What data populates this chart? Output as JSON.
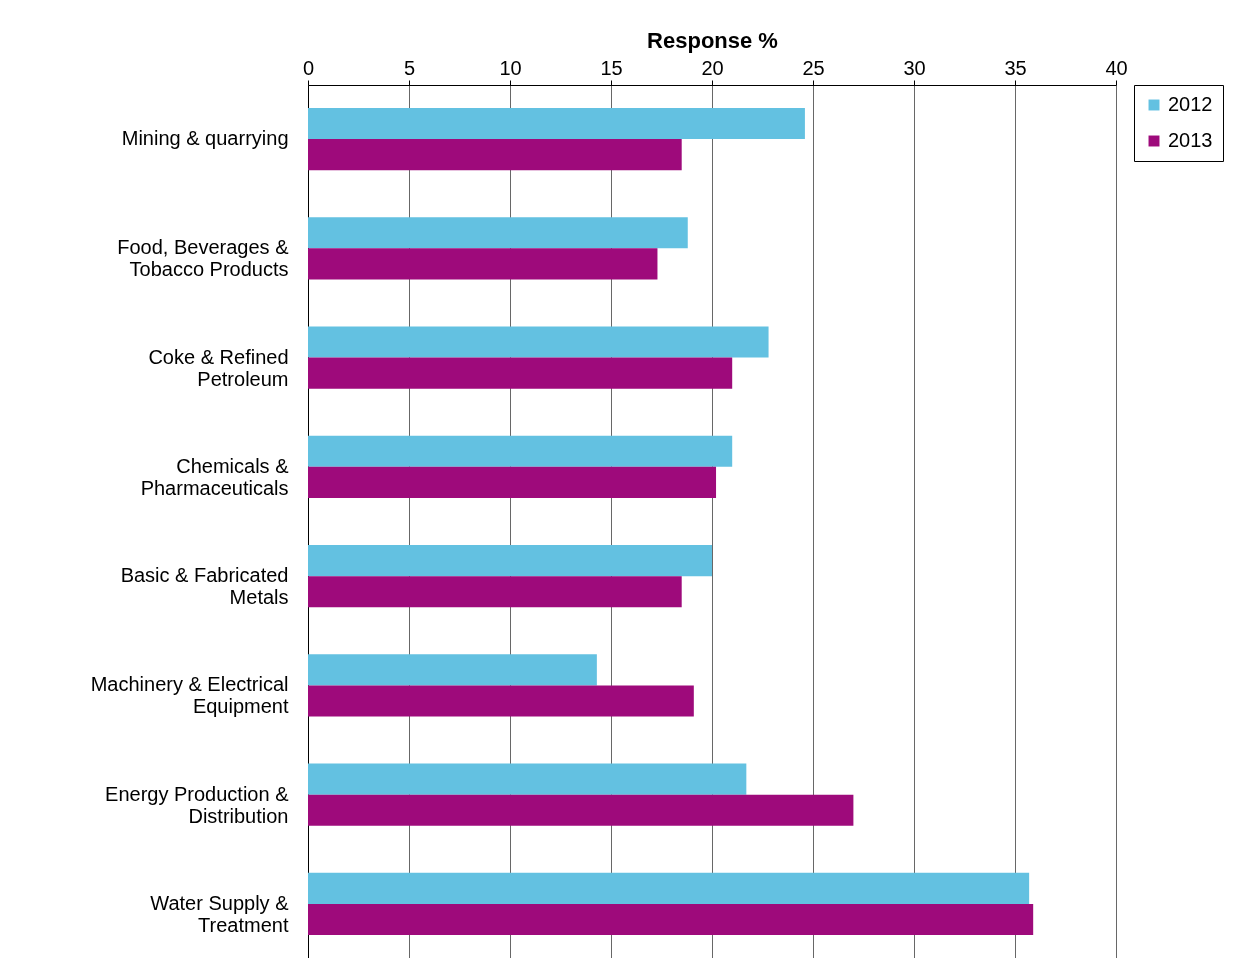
{
  "chart_data": {
    "type": "bar",
    "orientation": "horizontal",
    "xlabel": "Response %",
    "categories": [
      "Mining & quarrying",
      "Food, Beverages & Tobacco Products",
      "Coke & Refined Petroleum",
      "Chemicals & Pharmaceuticals",
      "Basic & Fabricated Metals",
      "Machinery & Electrical Equipment",
      "Energy Production & Distribution",
      "Water Supply & Treatment"
    ],
    "series": [
      {
        "name": "2012",
        "color": "#63c1e1",
        "values": [
          24.6,
          18.8,
          22.8,
          21.0,
          20.0,
          14.3,
          21.7,
          35.7
        ]
      },
      {
        "name": "2013",
        "color": "#9e0a7b",
        "values": [
          18.5,
          17.3,
          21.0,
          20.2,
          18.5,
          19.1,
          27.0,
          35.9
        ]
      }
    ],
    "xlim": [
      0,
      40
    ],
    "xticks": [
      0,
      5,
      10,
      15,
      20,
      25,
      30,
      35,
      40
    ],
    "grid": "x",
    "legend": "right"
  }
}
